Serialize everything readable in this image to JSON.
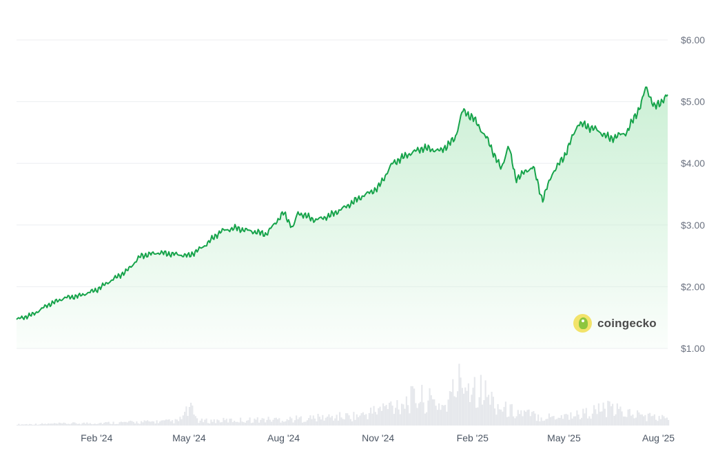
{
  "chart_data": {
    "type": "area",
    "title": "",
    "xlabel": "",
    "ylabel": "",
    "ylim": [
      1.0,
      6.0
    ],
    "y_ticks": [
      "$1.00",
      "$2.00",
      "$3.00",
      "$4.00",
      "$5.00",
      "$6.00"
    ],
    "y_tick_values": [
      1,
      2,
      3,
      4,
      5,
      6
    ],
    "x_ticks": [
      "Feb '24",
      "May '24",
      "Aug '24",
      "Nov '24",
      "Feb '25",
      "May '25",
      "Aug '25"
    ],
    "x_tick_dates": [
      "2024-02-01",
      "2024-05-01",
      "2024-08-01",
      "2024-11-01",
      "2025-02-01",
      "2025-05-01",
      "2025-08-01"
    ],
    "x_range": [
      "2023-11-15",
      "2025-08-10"
    ],
    "grid": true,
    "line_color": "#16a34a",
    "fill_color": "#c9efd3",
    "volume_color": "#e6e8ec",
    "series": [
      {
        "name": "",
        "points": [
          [
            "2023-11-15",
            1.47
          ],
          [
            "2023-12-01",
            1.55
          ],
          [
            "2023-12-15",
            1.7
          ],
          [
            "2024-01-01",
            1.82
          ],
          [
            "2024-01-15",
            1.85
          ],
          [
            "2024-02-01",
            1.95
          ],
          [
            "2024-02-15",
            2.1
          ],
          [
            "2024-03-01",
            2.25
          ],
          [
            "2024-03-15",
            2.5
          ],
          [
            "2024-04-01",
            2.55
          ],
          [
            "2024-04-15",
            2.53
          ],
          [
            "2024-05-01",
            2.5
          ],
          [
            "2024-05-15",
            2.65
          ],
          [
            "2024-06-01",
            2.9
          ],
          [
            "2024-06-15",
            2.95
          ],
          [
            "2024-07-01",
            2.9
          ],
          [
            "2024-07-15",
            2.85
          ],
          [
            "2024-08-01",
            3.2
          ],
          [
            "2024-08-10",
            2.95
          ],
          [
            "2024-08-15",
            3.2
          ],
          [
            "2024-09-01",
            3.08
          ],
          [
            "2024-09-15",
            3.15
          ],
          [
            "2024-10-01",
            3.3
          ],
          [
            "2024-10-15",
            3.45
          ],
          [
            "2024-11-01",
            3.6
          ],
          [
            "2024-11-15",
            4.0
          ],
          [
            "2024-12-01",
            4.15
          ],
          [
            "2024-12-15",
            4.25
          ],
          [
            "2025-01-01",
            4.2
          ],
          [
            "2025-01-15",
            4.4
          ],
          [
            "2025-01-22",
            4.85
          ],
          [
            "2025-02-01",
            4.75
          ],
          [
            "2025-02-15",
            4.4
          ],
          [
            "2025-03-01",
            3.9
          ],
          [
            "2025-03-08",
            4.3
          ],
          [
            "2025-03-15",
            3.75
          ],
          [
            "2025-04-01",
            3.95
          ],
          [
            "2025-04-10",
            3.4
          ],
          [
            "2025-04-20",
            3.85
          ],
          [
            "2025-05-01",
            4.1
          ],
          [
            "2025-05-15",
            4.65
          ],
          [
            "2025-06-01",
            4.55
          ],
          [
            "2025-06-15",
            4.4
          ],
          [
            "2025-07-01",
            4.5
          ],
          [
            "2025-07-15",
            4.95
          ],
          [
            "2025-07-20",
            5.25
          ],
          [
            "2025-07-28",
            4.9
          ],
          [
            "2025-08-10",
            5.1
          ]
        ]
      }
    ],
    "volume_shape": [
      [
        "2023-11-15",
        0.02
      ],
      [
        "2024-02-15",
        0.05
      ],
      [
        "2024-04-20",
        0.08
      ],
      [
        "2024-05-01",
        0.3
      ],
      [
        "2024-05-10",
        0.08
      ],
      [
        "2024-08-15",
        0.12
      ],
      [
        "2024-10-15",
        0.18
      ],
      [
        "2024-11-20",
        0.4
      ],
      [
        "2024-12-10",
        0.5
      ],
      [
        "2025-01-05",
        0.35
      ],
      [
        "2025-01-20",
        0.85
      ],
      [
        "2025-02-05",
        0.7
      ],
      [
        "2025-03-01",
        0.3
      ],
      [
        "2025-04-10",
        0.15
      ],
      [
        "2025-05-15",
        0.2
      ],
      [
        "2025-06-10",
        0.3
      ],
      [
        "2025-07-15",
        0.18
      ],
      [
        "2025-08-10",
        0.12
      ]
    ]
  },
  "watermark": {
    "brand": "coingecko",
    "icon": "gecko-logo-icon"
  }
}
